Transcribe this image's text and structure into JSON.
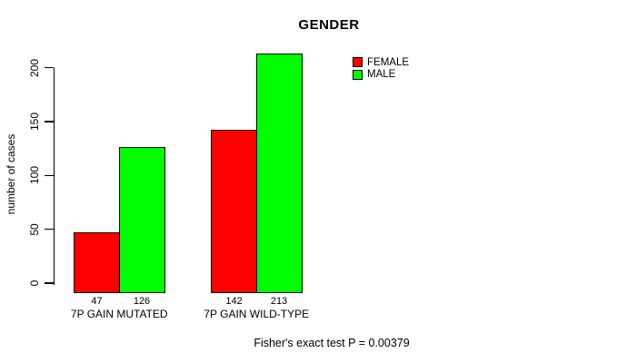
{
  "chart_data": {
    "type": "bar",
    "title": "GENDER",
    "xlabel": "",
    "ylabel": "number of cases",
    "categories": [
      "7P GAIN MUTATED",
      "7P GAIN WILD-TYPE"
    ],
    "series": [
      {
        "name": "FEMALE",
        "color": "#ff0000",
        "values": [
          47,
          142
        ]
      },
      {
        "name": "MALE",
        "color": "#00ff00",
        "values": [
          126,
          213
        ]
      }
    ],
    "bar_value_labels": [
      [
        "47",
        "126"
      ],
      [
        "142",
        "213"
      ]
    ],
    "yticks": [
      0,
      50,
      100,
      150,
      200
    ],
    "ylim": [
      0,
      215
    ],
    "grid": false,
    "legend_position": "top-right",
    "annotation": "Fisher's exact test P = 0.00379"
  },
  "colors": {
    "female": "#ff0000",
    "male": "#00ff00",
    "axis": "#000000",
    "background": "#ffffff"
  }
}
